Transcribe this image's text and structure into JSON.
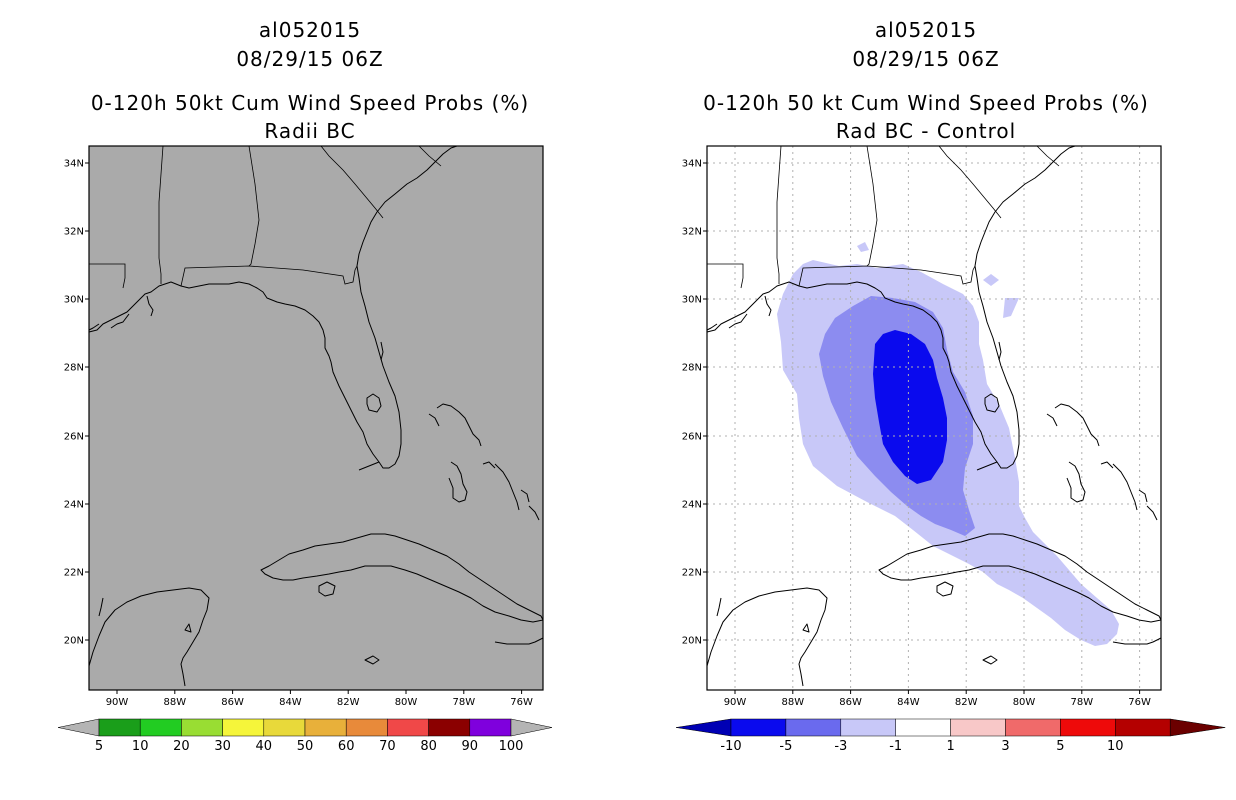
{
  "left_panel": {
    "storm_id": "al052015",
    "datetime": "08/29/15 06Z",
    "product": "0-120h 50kt Cum Wind Speed Probs (%)",
    "subtitle": "Radii BC",
    "background_color": "#aaaaaa",
    "lat_labels": [
      "34N",
      "32N",
      "30N",
      "28N",
      "26N",
      "24N",
      "22N",
      "20N"
    ],
    "lon_labels": [
      "90W",
      "88W",
      "86W",
      "84W",
      "82W",
      "80W",
      "78W",
      "76W"
    ],
    "colorbar": {
      "labels": [
        "5",
        "10",
        "20",
        "30",
        "40",
        "50",
        "60",
        "70",
        "80",
        "90",
        "100"
      ],
      "colors": [
        "#1a9e1a",
        "#22cc22",
        "#99dd33",
        "#f5f53a",
        "#e8d93a",
        "#e8b03a",
        "#e88a3a",
        "#f04848",
        "#8b0000",
        "#7f00dd"
      ],
      "end_color": "#b4b4b4"
    }
  },
  "right_panel": {
    "storm_id": "al052015",
    "datetime": "08/29/15 06Z",
    "product": "0-120h 50 kt Cum Wind Speed Probs (%)",
    "subtitle": "Rad BC - Control",
    "lat_labels": [
      "34N",
      "32N",
      "30N",
      "28N",
      "26N",
      "24N",
      "22N",
      "20N"
    ],
    "lon_labels": [
      "90W",
      "88W",
      "86W",
      "84W",
      "82W",
      "80W",
      "78W",
      "76W"
    ],
    "colorbar": {
      "labels": [
        "-10",
        "-5",
        "-3",
        "-1",
        "1",
        "3",
        "5",
        "10"
      ],
      "colors": [
        "#0000b4",
        "#0a0aee",
        "#6a6aee",
        "#c8c8f8",
        "#ffffff",
        "#f8c8c8",
        "#f06a6a",
        "#ee0a0a",
        "#b40000",
        "#6b0000"
      ]
    },
    "shading": [
      {
        "level": "-3 to -1",
        "color": "#c8c8f8"
      },
      {
        "level": "-5 to -3",
        "color": "#8c8cf0"
      },
      {
        "level": "-10 to -5",
        "color": "#0a0aee"
      }
    ]
  }
}
